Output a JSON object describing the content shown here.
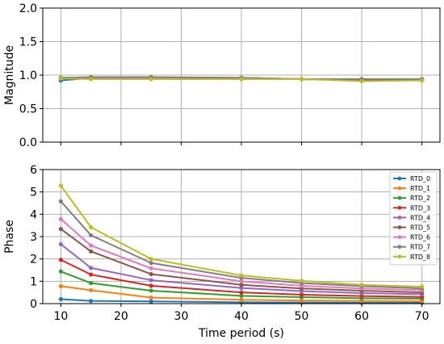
{
  "chart_data": [
    {
      "type": "line",
      "ylabel": "Magnitude",
      "xlabel": "",
      "ylim": [
        0.0,
        2.0
      ],
      "yticks": [
        "0.0",
        "0.5",
        "1.0",
        "1.5",
        "2.0"
      ],
      "xlim": [
        7,
        73
      ],
      "xticks": [
        10,
        20,
        30,
        40,
        50,
        60,
        70
      ],
      "show_xticklabels": false,
      "grid": true,
      "x": [
        10,
        15,
        25,
        40,
        50,
        60,
        70
      ],
      "series": [
        {
          "name": "RTD_0",
          "color": "#1f77b4",
          "values": [
            0.92,
            0.96,
            0.96,
            0.95,
            0.94,
            0.93,
            0.93
          ]
        },
        {
          "name": "RTD_1",
          "color": "#ff7f0e",
          "values": [
            0.95,
            0.95,
            0.95,
            0.95,
            0.94,
            0.93,
            0.93
          ]
        },
        {
          "name": "RTD_2",
          "color": "#2ca02c",
          "values": [
            0.95,
            0.95,
            0.95,
            0.95,
            0.94,
            0.93,
            0.93
          ]
        },
        {
          "name": "RTD_3",
          "color": "#d62728",
          "values": [
            0.96,
            0.96,
            0.96,
            0.95,
            0.94,
            0.93,
            0.93
          ]
        },
        {
          "name": "RTD_4",
          "color": "#9467bd",
          "values": [
            0.96,
            0.96,
            0.96,
            0.95,
            0.94,
            0.94,
            0.94
          ]
        },
        {
          "name": "RTD_5",
          "color": "#8c564b",
          "values": [
            0.96,
            0.96,
            0.96,
            0.96,
            0.94,
            0.94,
            0.94
          ]
        },
        {
          "name": "RTD_6",
          "color": "#e377c2",
          "values": [
            0.96,
            0.96,
            0.96,
            0.96,
            0.94,
            0.94,
            0.94
          ]
        },
        {
          "name": "RTD_7",
          "color": "#7f7f7f",
          "values": [
            0.96,
            0.97,
            0.97,
            0.96,
            0.94,
            0.94,
            0.94
          ]
        },
        {
          "name": "RTD_8",
          "color": "#bcbd22",
          "values": [
            0.95,
            0.94,
            0.94,
            0.94,
            0.94,
            0.91,
            0.92
          ]
        }
      ]
    },
    {
      "type": "line",
      "ylabel": "Phase",
      "xlabel": "Time period (s)",
      "ylim": [
        0,
        6
      ],
      "yticks": [
        "0",
        "1",
        "2",
        "3",
        "4",
        "5",
        "6"
      ],
      "xlim": [
        7,
        73
      ],
      "xticks": [
        10,
        20,
        30,
        40,
        50,
        60,
        70
      ],
      "show_xticklabels": true,
      "grid": true,
      "legend": "top-right",
      "x": [
        10,
        15,
        25,
        40,
        50,
        60,
        70
      ],
      "series": [
        {
          "name": "RTD_0",
          "color": "#1f77b4",
          "values": [
            0.2,
            0.12,
            0.1,
            0.06,
            0.05,
            0.04,
            0.04
          ]
        },
        {
          "name": "RTD_1",
          "color": "#ff7f0e",
          "values": [
            0.78,
            0.6,
            0.27,
            0.17,
            0.14,
            0.12,
            0.11
          ]
        },
        {
          "name": "RTD_2",
          "color": "#2ca02c",
          "values": [
            1.44,
            0.92,
            0.58,
            0.35,
            0.29,
            0.24,
            0.22
          ]
        },
        {
          "name": "RTD_3",
          "color": "#d62728",
          "values": [
            1.96,
            1.3,
            0.8,
            0.5,
            0.4,
            0.34,
            0.3
          ]
        },
        {
          "name": "RTD_4",
          "color": "#9467bd",
          "values": [
            2.66,
            1.6,
            1.05,
            0.7,
            0.56,
            0.47,
            0.42
          ]
        },
        {
          "name": "RTD_5",
          "color": "#8c564b",
          "values": [
            3.34,
            2.34,
            1.32,
            0.84,
            0.68,
            0.58,
            0.5
          ]
        },
        {
          "name": "RTD_6",
          "color": "#e377c2",
          "values": [
            3.78,
            2.6,
            1.58,
            1.0,
            0.8,
            0.68,
            0.6
          ]
        },
        {
          "name": "RTD_7",
          "color": "#7f7f7f",
          "values": [
            4.58,
            3.06,
            1.82,
            1.15,
            0.92,
            0.78,
            0.68
          ]
        },
        {
          "name": "RTD_8",
          "color": "#bcbd22",
          "values": [
            5.28,
            3.42,
            2.0,
            1.26,
            1.02,
            0.84,
            0.76
          ]
        }
      ]
    }
  ]
}
